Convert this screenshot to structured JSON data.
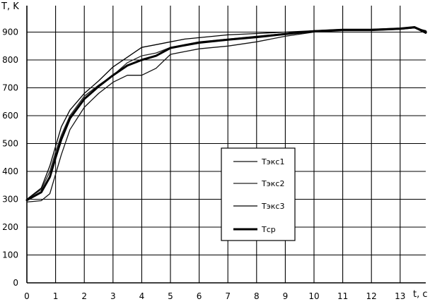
{
  "chart_data": {
    "type": "line",
    "ylabel": "T, K",
    "xlabel": "t, c",
    "xlim": [
      0,
      14
    ],
    "ylim": [
      0,
      950
    ],
    "x_ticks": [
      0,
      1,
      2,
      3,
      4,
      5,
      6,
      7,
      8,
      9,
      10,
      11,
      12,
      13
    ],
    "y_ticks": [
      0,
      100,
      200,
      300,
      400,
      500,
      600,
      700,
      800,
      900
    ],
    "grid": true,
    "legend_position": "center",
    "series": [
      {
        "name": "Тэкс1",
        "color": "#111111",
        "width": 1.3,
        "x": [
          0,
          0.5,
          0.8,
          1.0,
          1.2,
          1.5,
          2.0,
          2.5,
          3.0,
          3.5,
          4.0,
          4.5,
          5.0,
          5.5,
          6.0,
          7.0,
          8.0,
          9.0,
          10.0,
          11.0,
          12.0,
          13.0,
          13.5,
          13.9
        ],
        "y": [
          290,
          295,
          320,
          390,
          460,
          550,
          630,
          680,
          720,
          745,
          745,
          770,
          820,
          830,
          840,
          850,
          865,
          885,
          900,
          905,
          905,
          910,
          915,
          905
        ]
      },
      {
        "name": "Тэкс2",
        "color": "#222222",
        "width": 1.3,
        "x": [
          0,
          0.5,
          0.8,
          1.0,
          1.2,
          1.5,
          2.0,
          2.5,
          3.0,
          3.5,
          4.0,
          4.5,
          5.0,
          5.5,
          6.0,
          7.0,
          8.0,
          9.0,
          10.0,
          11.0,
          12.0,
          13.0,
          13.5,
          13.9
        ],
        "y": [
          300,
          335,
          400,
          470,
          530,
          600,
          670,
          710,
          745,
          790,
          815,
          825,
          845,
          855,
          865,
          875,
          885,
          895,
          905,
          910,
          910,
          915,
          920,
          900
        ]
      },
      {
        "name": "Тэкс3",
        "color": "#000000",
        "width": 1.3,
        "x": [
          0,
          0.5,
          0.8,
          1.0,
          1.2,
          1.5,
          2.0,
          2.5,
          3.0,
          3.5,
          4.0,
          4.5,
          5.0,
          5.5,
          6.0,
          7.0,
          8.0,
          9.0,
          10.0,
          11.0,
          12.0,
          13.0,
          13.5,
          13.9
        ],
        "y": [
          300,
          340,
          420,
          490,
          560,
          620,
          680,
          725,
          775,
          810,
          845,
          855,
          865,
          875,
          880,
          890,
          895,
          900,
          905,
          908,
          910,
          912,
          915,
          895
        ]
      },
      {
        "name": "Тср",
        "color": "#000000",
        "width": 3,
        "x": [
          0,
          0.5,
          0.8,
          1.0,
          1.2,
          1.5,
          2.0,
          2.5,
          3.0,
          3.5,
          4.0,
          4.5,
          5.0,
          5.5,
          6.0,
          7.0,
          8.0,
          9.0,
          10.0,
          11.0,
          12.0,
          13.0,
          13.5,
          13.9
        ],
        "y": [
          297,
          325,
          380,
          450,
          515,
          590,
          660,
          705,
          745,
          780,
          800,
          815,
          843,
          853,
          862,
          873,
          882,
          893,
          903,
          908,
          908,
          912,
          917,
          900
        ]
      }
    ]
  }
}
